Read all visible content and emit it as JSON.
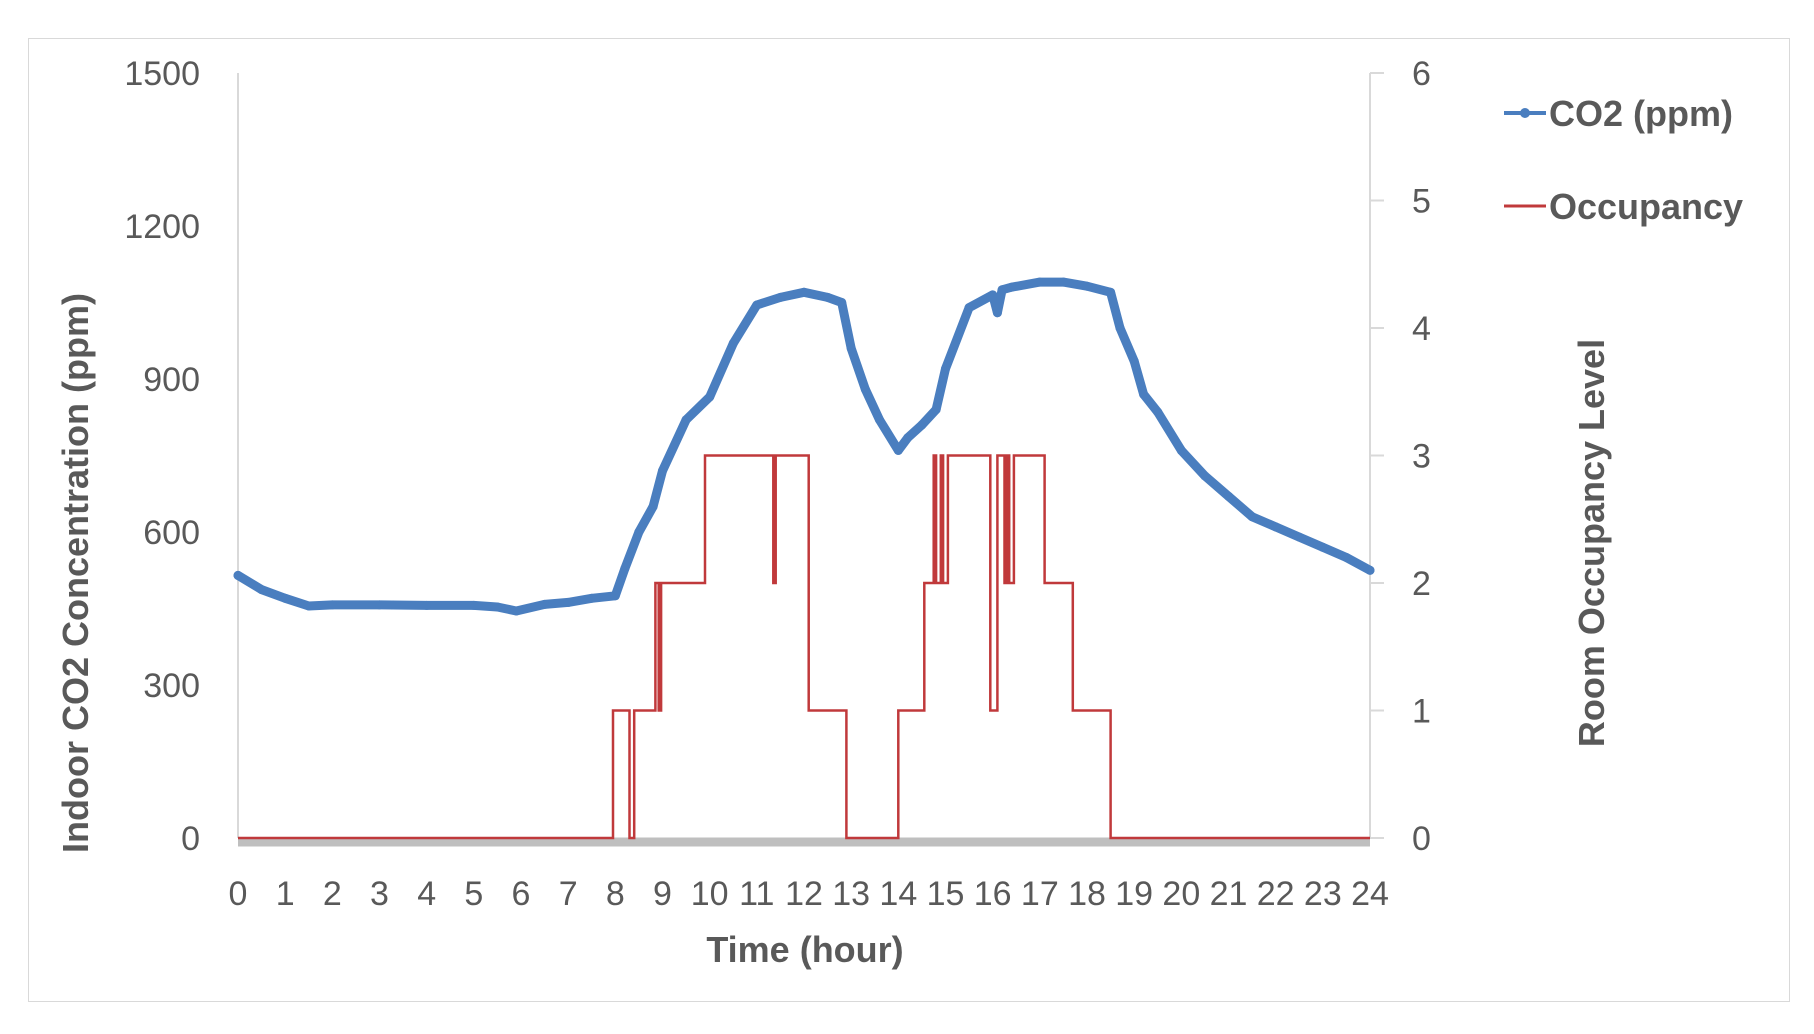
{
  "chart_data": {
    "type": "line",
    "title": "",
    "xlabel": "Time (hour)",
    "ylabel_left": "Indoor CO2 Concentration (ppm)",
    "ylabel_right": "Room Occupancy Level",
    "xlim": [
      0,
      24
    ],
    "ylim_left": [
      0,
      1500
    ],
    "ylim_right": [
      0,
      6
    ],
    "x_ticks": [
      "0",
      "1",
      "2",
      "3",
      "4",
      "5",
      "6",
      "7",
      "8",
      "9",
      "10",
      "11",
      "12",
      "13",
      "14",
      "15",
      "16",
      "17",
      "18",
      "19",
      "20",
      "21",
      "22",
      "23",
      "24"
    ],
    "y_left_ticks": [
      "0",
      "300",
      "600",
      "900",
      "1200",
      "1500"
    ],
    "y_right_ticks": [
      "0",
      "1",
      "2",
      "3",
      "4",
      "5",
      "6"
    ],
    "grid": false,
    "legend_position": "top-right",
    "colors": {
      "co2": "#4a7ebf",
      "occupancy": "#c0393b",
      "baseline": "#bfbfbf",
      "axis": "#d9d9d9"
    },
    "series": [
      {
        "name": "CO2 (ppm)",
        "axis": "left",
        "x": [
          0,
          0.5,
          1,
          1.5,
          2,
          3,
          4,
          5,
          5.5,
          5.9,
          6.5,
          7,
          7.5,
          8,
          8.2,
          8.5,
          8.8,
          9,
          9.5,
          10,
          10.5,
          11,
          11.5,
          12,
          12.5,
          12.8,
          13,
          13.3,
          13.6,
          14,
          14.2,
          14.5,
          14.8,
          15,
          15.5,
          16,
          16.1,
          16.2,
          16.4,
          17,
          17.5,
          18,
          18.5,
          18.7,
          19,
          19.2,
          19.5,
          20,
          20.5,
          21,
          21.5,
          22,
          22.5,
          23,
          23.5,
          24
        ],
        "values": [
          515,
          487,
          470,
          455,
          457,
          457,
          456,
          456,
          453,
          445,
          458,
          462,
          470,
          475,
          528,
          600,
          650,
          720,
          820,
          865,
          970,
          1045,
          1060,
          1070,
          1060,
          1050,
          960,
          880,
          820,
          760,
          785,
          810,
          840,
          920,
          1040,
          1065,
          1030,
          1075,
          1080,
          1090,
          1090,
          1082,
          1070,
          1000,
          935,
          870,
          835,
          760,
          710,
          670,
          630,
          610,
          590,
          570,
          550,
          525
        ]
      },
      {
        "name": "Occupancy",
        "axis": "right",
        "x": [
          0,
          7.95,
          7.95,
          8.3,
          8.3,
          8.4,
          8.4,
          8.45,
          8.45,
          8.85,
          8.85,
          8.92,
          8.92,
          8.97,
          8.97,
          9.9,
          9.9,
          11.35,
          11.35,
          11.4,
          11.4,
          11.5,
          11.5,
          12.1,
          12.1,
          12.9,
          12.9,
          14.0,
          14.0,
          14.55,
          14.55,
          14.75,
          14.75,
          14.8,
          14.8,
          14.9,
          14.9,
          14.95,
          14.95,
          15.05,
          15.05,
          15.1,
          15.1,
          15.95,
          15.95,
          16.1,
          16.1,
          16.25,
          16.25,
          16.3,
          16.3,
          16.35,
          16.35,
          16.45,
          16.45,
          16.5,
          16.5,
          17.1,
          17.1,
          17.7,
          17.7,
          18.5,
          18.5,
          24
        ],
        "values": [
          0,
          0,
          1,
          1,
          0,
          0,
          1,
          1,
          1,
          1,
          2,
          2,
          1,
          1,
          2,
          2,
          3,
          3,
          2,
          2,
          3,
          3,
          3,
          3,
          1,
          1,
          0,
          0,
          1,
          1,
          2,
          2,
          3,
          3,
          2,
          2,
          3,
          3,
          2,
          2,
          3,
          3,
          3,
          3,
          1,
          1,
          3,
          3,
          2,
          2,
          3,
          3,
          2,
          2,
          3,
          3,
          3,
          3,
          2,
          2,
          1,
          1,
          0,
          0
        ]
      }
    ]
  }
}
